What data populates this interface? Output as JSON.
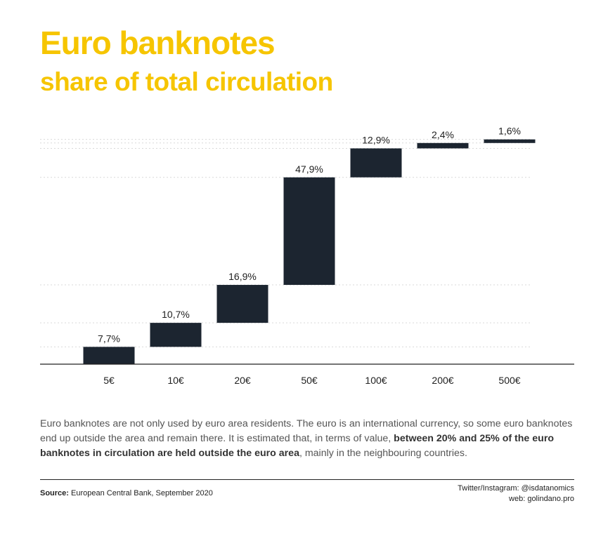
{
  "header": {
    "title": "Euro banknotes",
    "subtitle": "share of total circulation"
  },
  "chart_data": {
    "type": "bar",
    "subtype": "waterfall",
    "categories": [
      "5€",
      "10€",
      "20€",
      "50€",
      "100€",
      "200€",
      "500€"
    ],
    "values": [
      7.7,
      10.7,
      16.9,
      47.9,
      12.9,
      2.4,
      1.6
    ],
    "value_labels": [
      "7,7%",
      "10,7%",
      "16,9%",
      "47,9%",
      "12,9%",
      "2,4%",
      "1,6%"
    ],
    "ylim": [
      0,
      100
    ],
    "grid": true,
    "bar_color": "#1c2530"
  },
  "description": {
    "part1": "Euro banknotes are not only used by euro area residents. The euro is an international currency, so some euro banknotes end up outside the area and remain there. It is estimated that, in terms of value, ",
    "bold": "between 20% and 25% of the euro banknotes in circulation are held outside the euro area",
    "part2": ", mainly in the neighbouring countries."
  },
  "footer": {
    "source_label": "Source:",
    "source_text": " European Central Bank, September 2020",
    "social": "Twitter/Instagram: @isdatanomics",
    "web": "web: golindano.pro"
  }
}
